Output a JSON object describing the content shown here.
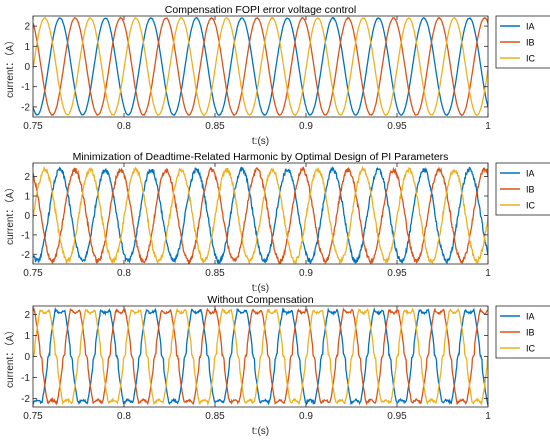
{
  "chart_data": [
    {
      "type": "line",
      "title": "Compensation FOPI error voltage control",
      "xlabel": "t:(s)",
      "ylabel": "current：（A）",
      "xlim": [
        0.75,
        1.0
      ],
      "ylim": [
        -2.5,
        2.5
      ],
      "xticks": [
        "0.75",
        "0.8",
        "0.85",
        "0.9",
        "0.95",
        "1"
      ],
      "yticks": [
        "-2",
        "-1",
        "0",
        "1",
        "2"
      ],
      "grid": false,
      "legend_position": "outside-right",
      "waveform": "sinusoidal",
      "frequency_hz": 40,
      "amplitude_A": 2.4,
      "noise_A": 0.02,
      "series": [
        {
          "name": "IA",
          "color": "#0072BD",
          "phase_deg": -123
        },
        {
          "name": "IB",
          "color": "#D95319",
          "phase_deg": 117
        },
        {
          "name": "IC",
          "color": "#EDB120",
          "phase_deg": -3
        }
      ]
    },
    {
      "type": "line",
      "title": "Minimization of Deadtime-Related Harmonic by Optimal Design of PI Parameters",
      "xlabel": "t:(s)",
      "ylabel": "current：（A）",
      "xlim": [
        0.75,
        1.0
      ],
      "ylim": [
        -2.5,
        2.7
      ],
      "xticks": [
        "0.75",
        "0.8",
        "0.85",
        "0.9",
        "0.95",
        "1"
      ],
      "yticks": [
        "-2",
        "-1",
        "0",
        "1",
        "2"
      ],
      "grid": false,
      "legend_position": "outside-right",
      "waveform": "sinusoidal with ripple",
      "frequency_hz": 40,
      "amplitude_A": 2.35,
      "noise_A": 0.12,
      "series": [
        {
          "name": "IA",
          "color": "#0072BD",
          "phase_deg": -123
        },
        {
          "name": "IB",
          "color": "#D95319",
          "phase_deg": 117
        },
        {
          "name": "IC",
          "color": "#EDB120",
          "phase_deg": -3
        }
      ]
    },
    {
      "type": "line",
      "title": "Without Compensation",
      "xlabel": "t:(s)",
      "ylabel": "current：（A）",
      "xlim": [
        0.75,
        1.0
      ],
      "ylim": [
        -2.4,
        2.4
      ],
      "xticks": [
        "0.75",
        "0.8",
        "0.85",
        "0.9",
        "0.95",
        "1"
      ],
      "yticks": [
        "-2",
        "-1",
        "0",
        "1",
        "2"
      ],
      "grid": false,
      "legend_position": "outside-right",
      "waveform": "distorted (deadtime, flattened tops and zero-crossing clamping)",
      "frequency_hz": 40,
      "amplitude_A": 2.2,
      "noise_A": 0.05,
      "series": [
        {
          "name": "IA",
          "color": "#0072BD",
          "phase_deg": -123
        },
        {
          "name": "IB",
          "color": "#D95319",
          "phase_deg": 117
        },
        {
          "name": "IC",
          "color": "#EDB120",
          "phase_deg": -3
        }
      ]
    }
  ]
}
